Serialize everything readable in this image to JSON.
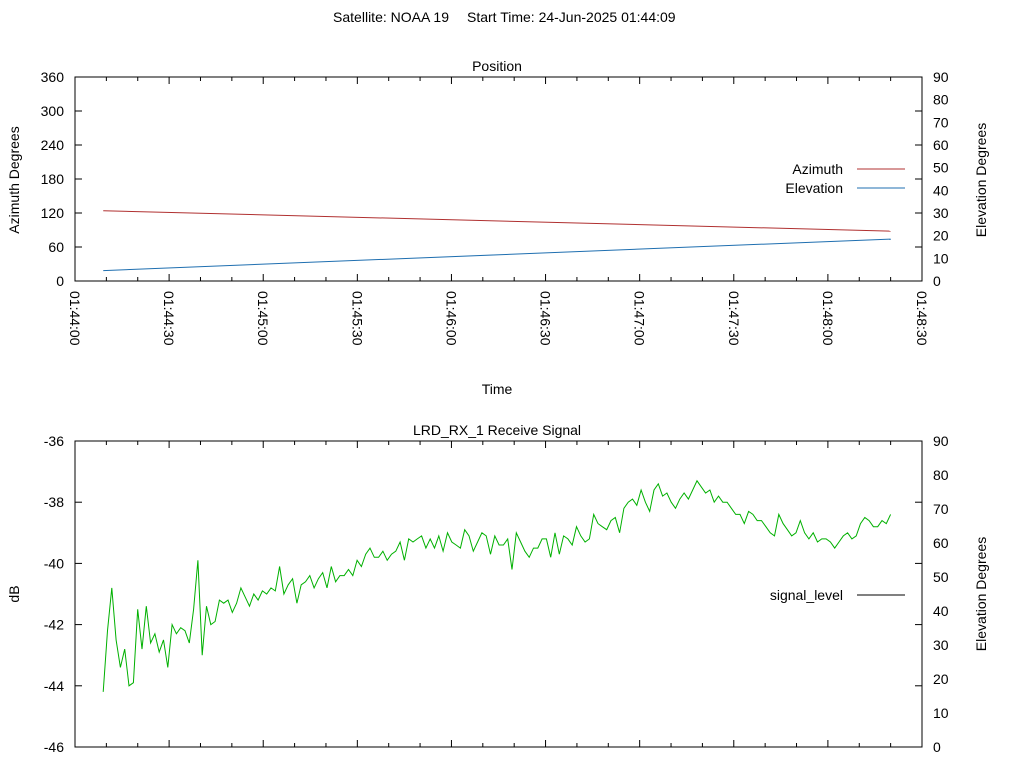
{
  "header": {
    "satellite": "Satellite: NOAA 19",
    "start_time": "Start Time: 24-Jun-2025 01:44:09"
  },
  "colors": {
    "azimuth": "#b03030",
    "elevation": "#1f6fb0",
    "signal": "#00b000",
    "axis": "#000000"
  },
  "chart_data": [
    {
      "type": "line",
      "title": "Position",
      "xlabel": "Time",
      "ylabel": "Azimuth Degrees",
      "y2label": "Elevation Degrees",
      "legend_position": "right",
      "grid": false,
      "x_ticks": [
        "01:44:00",
        "01:44:30",
        "01:45:00",
        "01:45:30",
        "01:46:00",
        "01:46:30",
        "01:47:00",
        "01:47:30",
        "01:48:00",
        "01:48:30"
      ],
      "y_ticks": [
        "0",
        "60",
        "120",
        "180",
        "240",
        "300",
        "360"
      ],
      "y2_ticks": [
        "0",
        "10",
        "20",
        "30",
        "40",
        "50",
        "60",
        "70",
        "80",
        "90"
      ],
      "ylim": [
        0,
        360
      ],
      "y2lim": [
        0,
        90
      ],
      "series": [
        {
          "name": "Azimuth",
          "axis": "y1",
          "x": [
            "01:44:09",
            "01:48:20"
          ],
          "values": [
            124,
            88
          ]
        },
        {
          "name": "Elevation",
          "axis": "y2",
          "x": [
            "01:44:09",
            "01:48:20"
          ],
          "values": [
            4.6,
            18.5
          ]
        }
      ]
    },
    {
      "type": "line",
      "title": "LRD_RX_1 Receive Signal",
      "ylabel": "dB",
      "y2label": "Elevation Degrees",
      "legend_position": "right",
      "grid": false,
      "y_ticks": [
        "-36",
        "-38",
        "-40",
        "-42",
        "-44",
        "-46"
      ],
      "y2_ticks": [
        "0",
        "10",
        "20",
        "30",
        "40",
        "50",
        "60",
        "70",
        "80",
        "90"
      ],
      "ylim": [
        -46,
        -36
      ],
      "y2lim": [
        0,
        90
      ],
      "x_range": [
        "01:44:00",
        "01:48:30"
      ],
      "series": [
        {
          "name": "signal_level",
          "x_start": "01:44:09",
          "x_end": "01:48:20",
          "values": [
            -44.2,
            -42.2,
            -40.8,
            -42.5,
            -43.4,
            -42.8,
            -44.0,
            -43.9,
            -41.5,
            -42.8,
            -41.4,
            -42.6,
            -42.3,
            -42.9,
            -42.5,
            -43.4,
            -42.0,
            -42.3,
            -42.1,
            -42.2,
            -42.6,
            -41.5,
            -39.9,
            -43.0,
            -41.4,
            -42.0,
            -41.9,
            -41.2,
            -41.3,
            -41.2,
            -41.6,
            -41.3,
            -40.8,
            -41.1,
            -41.4,
            -41.0,
            -41.2,
            -40.9,
            -41.0,
            -40.8,
            -40.9,
            -40.1,
            -41.0,
            -40.7,
            -40.5,
            -41.3,
            -40.7,
            -40.6,
            -40.4,
            -40.8,
            -40.5,
            -40.3,
            -40.8,
            -40.1,
            -40.6,
            -40.4,
            -40.4,
            -40.2,
            -40.4,
            -39.9,
            -40.1,
            -39.7,
            -39.5,
            -39.8,
            -39.8,
            -39.6,
            -39.9,
            -39.7,
            -39.6,
            -39.3,
            -39.9,
            -39.2,
            -39.3,
            -39.2,
            -39.1,
            -39.5,
            -39.2,
            -39.5,
            -39.1,
            -39.6,
            -39.0,
            -39.3,
            -39.4,
            -39.5,
            -38.9,
            -39.1,
            -39.6,
            -39.3,
            -39.0,
            -39.1,
            -39.7,
            -39.1,
            -39.4,
            -39.4,
            -39.2,
            -40.2,
            -39.0,
            -39.3,
            -39.6,
            -39.8,
            -39.5,
            -39.5,
            -39.2,
            -39.2,
            -39.8,
            -39.0,
            -39.7,
            -39.1,
            -39.2,
            -39.4,
            -38.8,
            -39.1,
            -39.3,
            -39.2,
            -38.4,
            -38.7,
            -38.8,
            -38.9,
            -38.6,
            -38.5,
            -39.0,
            -38.2,
            -38.0,
            -37.9,
            -38.1,
            -37.6,
            -38.0,
            -38.3,
            -37.6,
            -37.4,
            -37.8,
            -37.7,
            -38.0,
            -38.2,
            -37.9,
            -37.7,
            -37.9,
            -37.6,
            -37.3,
            -37.5,
            -37.7,
            -37.6,
            -38.0,
            -37.8,
            -38.0,
            -38.0,
            -38.2,
            -38.4,
            -38.4,
            -38.7,
            -38.3,
            -38.4,
            -38.6,
            -38.6,
            -38.8,
            -39.0,
            -39.1,
            -38.4,
            -38.7,
            -38.9,
            -39.1,
            -39.0,
            -38.6,
            -39.0,
            -39.2,
            -39.0,
            -39.3,
            -39.2,
            -39.2,
            -39.3,
            -39.5,
            -39.3,
            -39.1,
            -39.0,
            -39.2,
            -39.1,
            -38.7,
            -38.5,
            -38.6,
            -38.8,
            -38.8,
            -38.6,
            -38.7,
            -38.4
          ]
        }
      ]
    }
  ]
}
